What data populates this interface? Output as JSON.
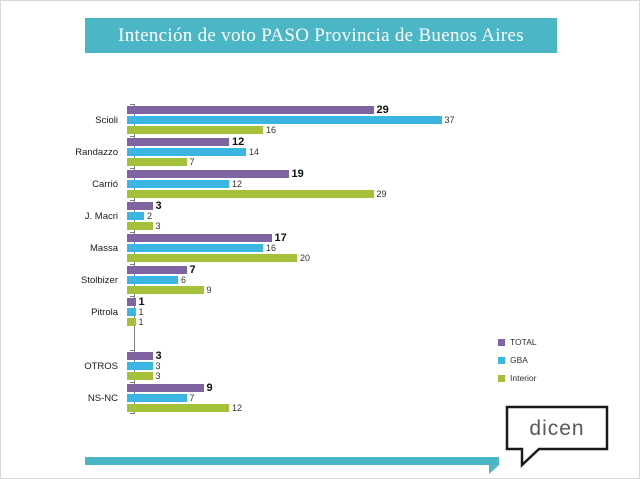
{
  "title": "Intención de voto PASO Provincia de Buenos Aires",
  "logo": {
    "text": "dicen"
  },
  "colors": {
    "banner": "#4BB7C6",
    "total": "#8064A2",
    "gba": "#3BB5E2",
    "interior": "#A4C139"
  },
  "chart_data": {
    "type": "bar",
    "orientation": "horizontal",
    "title": "Intención de voto PASO Provincia de Buenos Aires",
    "categories": [
      "Scioli",
      "Randazzo",
      "Carrió",
      "J. Macri",
      "Massa",
      "Stolbizer",
      "Pitrola",
      "OTROS",
      "NS-NC"
    ],
    "series": [
      {
        "name": "TOTAL",
        "color": "#8064A2",
        "values": [
          29,
          12,
          19,
          3,
          17,
          7,
          1,
          3,
          9
        ]
      },
      {
        "name": "GBA",
        "color": "#3BB5E2",
        "values": [
          37,
          14,
          12,
          2,
          16,
          6,
          1,
          3,
          7
        ]
      },
      {
        "name": "Interior",
        "color": "#A4C139",
        "values": [
          16,
          7,
          29,
          3,
          20,
          9,
          1,
          3,
          12
        ]
      }
    ],
    "xlim": [
      0,
      40
    ],
    "grid": false,
    "legend_position": "right",
    "gap_before_category": "OTROS"
  }
}
